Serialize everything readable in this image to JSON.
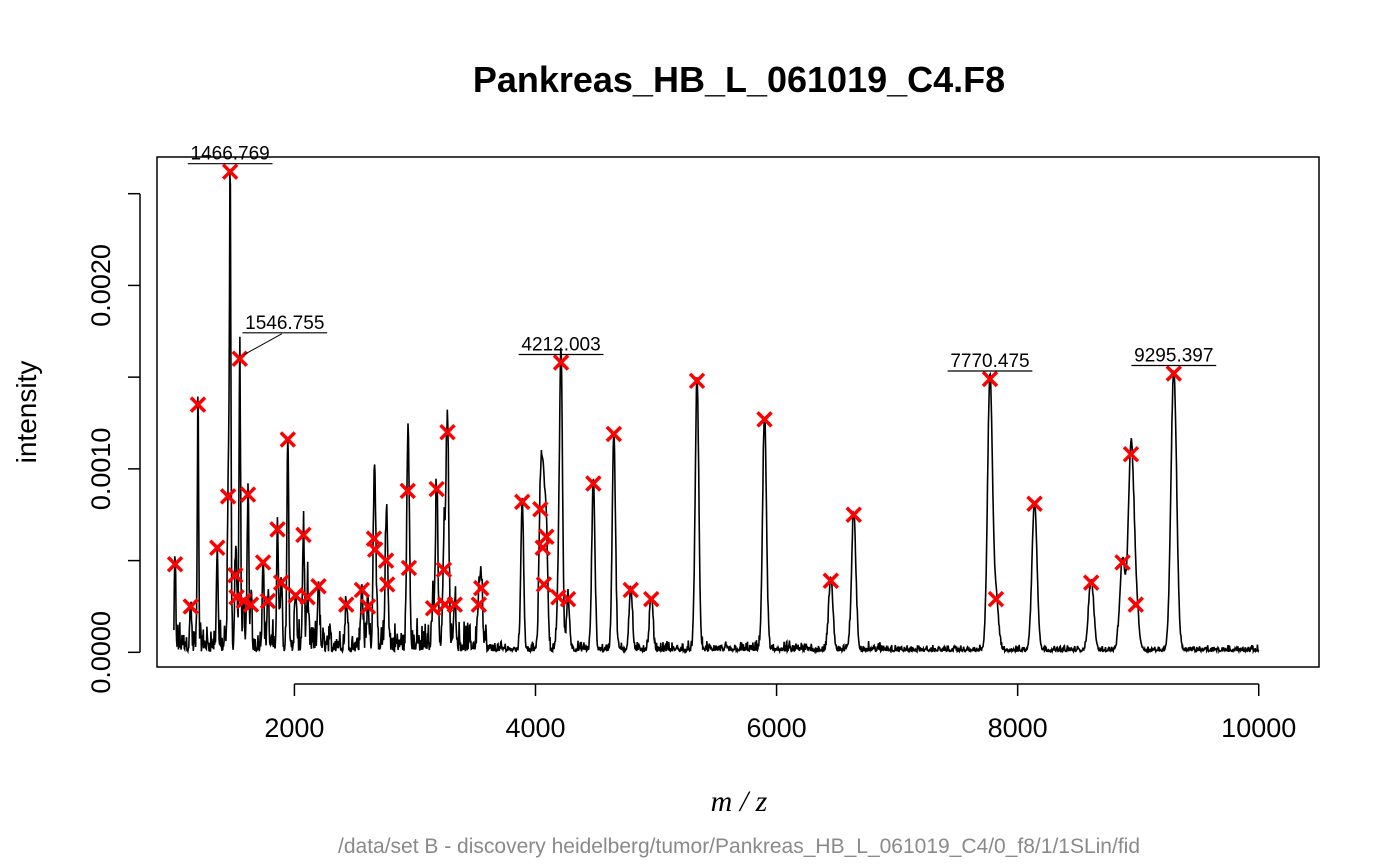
{
  "chart_data": {
    "type": "line",
    "title": "Pankreas_HB_L_061019_C4.F8",
    "subtitle": "/data/set B - discovery heidelberg/tumor/Pankreas_HB_L_061019_C4/0_f8/1/1SLin/fid",
    "xlabel": "m / z",
    "ylabel": "intensity",
    "xlim": [
      860,
      10500
    ],
    "ylim": [
      -8e-05,
      0.0027
    ],
    "xticks": [
      2000,
      4000,
      6000,
      8000,
      10000
    ],
    "yticks": [
      0.0,
      0.0005,
      0.001,
      0.0015,
      0.002,
      0.0025
    ],
    "ytick_labels": [
      "0.0000",
      "",
      "0.0010",
      "",
      "0.0020",
      ""
    ],
    "grid": false,
    "line_color": "#000000",
    "marker_color": "#ff0000",
    "x_range": [
      1000,
      10000
    ],
    "peaks": [
      {
        "x": 1010,
        "y": 0.00048
      },
      {
        "x": 1140,
        "y": 0.00025
      },
      {
        "x": 1200,
        "y": 0.00135
      },
      {
        "x": 1360,
        "y": 0.00057
      },
      {
        "x": 1466.769,
        "y": 0.00262,
        "label": "1466.769"
      },
      {
        "x": 1450,
        "y": 0.00085
      },
      {
        "x": 1510,
        "y": 0.00042
      },
      {
        "x": 1520,
        "y": 0.0003
      },
      {
        "x": 1546.755,
        "y": 0.0016,
        "label": "1546.755"
      },
      {
        "x": 1580,
        "y": 0.00028
      },
      {
        "x": 1615,
        "y": 0.00086
      },
      {
        "x": 1640,
        "y": 0.00026
      },
      {
        "x": 1740,
        "y": 0.00049
      },
      {
        "x": 1780,
        "y": 0.00028
      },
      {
        "x": 1860,
        "y": 0.00067
      },
      {
        "x": 1890,
        "y": 0.00038
      },
      {
        "x": 1945,
        "y": 0.00116
      },
      {
        "x": 2010,
        "y": 0.00031
      },
      {
        "x": 2075,
        "y": 0.00064
      },
      {
        "x": 2110,
        "y": 0.0003
      },
      {
        "x": 2200,
        "y": 0.00036
      },
      {
        "x": 2430,
        "y": 0.00026
      },
      {
        "x": 2560,
        "y": 0.00034
      },
      {
        "x": 2610,
        "y": 0.00025
      },
      {
        "x": 2660,
        "y": 0.00062
      },
      {
        "x": 2670,
        "y": 0.00056
      },
      {
        "x": 2760,
        "y": 0.0005
      },
      {
        "x": 2770,
        "y": 0.00037
      },
      {
        "x": 2940,
        "y": 0.00088
      },
      {
        "x": 2950,
        "y": 0.00046
      },
      {
        "x": 3150,
        "y": 0.00024
      },
      {
        "x": 3180,
        "y": 0.00089
      },
      {
        "x": 3240,
        "y": 0.00045
      },
      {
        "x": 3250,
        "y": 0.00026
      },
      {
        "x": 3270,
        "y": 0.0012
      },
      {
        "x": 3330,
        "y": 0.00026
      },
      {
        "x": 3530,
        "y": 0.00026
      },
      {
        "x": 3550,
        "y": 0.00035
      },
      {
        "x": 3890,
        "y": 0.00082
      },
      {
        "x": 4040,
        "y": 0.00078
      },
      {
        "x": 4060,
        "y": 0.00057
      },
      {
        "x": 4070,
        "y": 0.00037
      },
      {
        "x": 4090,
        "y": 0.00063
      },
      {
        "x": 4190,
        "y": 0.0003
      },
      {
        "x": 4212.003,
        "y": 0.00158,
        "label": "4212.003"
      },
      {
        "x": 4270,
        "y": 0.00029
      },
      {
        "x": 4480,
        "y": 0.00092
      },
      {
        "x": 4650,
        "y": 0.00119
      },
      {
        "x": 4790,
        "y": 0.00034
      },
      {
        "x": 4960,
        "y": 0.00029
      },
      {
        "x": 5340,
        "y": 0.00148
      },
      {
        "x": 5900,
        "y": 0.00127
      },
      {
        "x": 6450,
        "y": 0.00039
      },
      {
        "x": 6640,
        "y": 0.00075
      },
      {
        "x": 7770.475,
        "y": 0.00149,
        "label": "7770.475"
      },
      {
        "x": 7820,
        "y": 0.00029
      },
      {
        "x": 8140,
        "y": 0.00081
      },
      {
        "x": 8610,
        "y": 0.00038
      },
      {
        "x": 8870,
        "y": 0.00049
      },
      {
        "x": 8940,
        "y": 0.00108
      },
      {
        "x": 8980,
        "y": 0.00026
      },
      {
        "x": 9295.397,
        "y": 0.00152,
        "label": "9295.397"
      }
    ],
    "label_offsets": {
      "1466.769": "above",
      "1546.755": "leader",
      "4212.003": "above",
      "7770.475": "above",
      "9295.397": "above"
    }
  }
}
